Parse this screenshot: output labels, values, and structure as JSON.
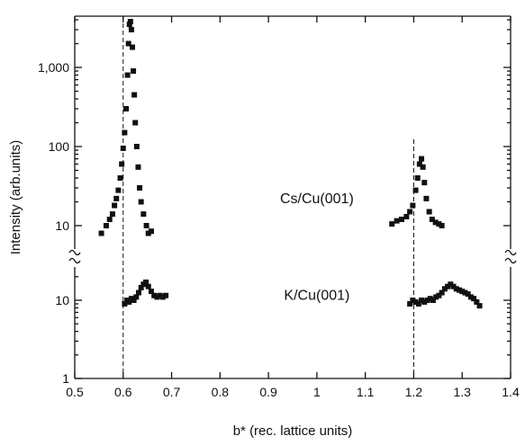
{
  "chart_data": {
    "type": "scatter",
    "xlabel": "b* (rec. lattice units)",
    "ylabel": "Intensity (arb.units)",
    "xlim": [
      0.5,
      1.4
    ],
    "x_ticks": [
      "0.5",
      "0.6",
      "0.7",
      "0.8",
      "0.9",
      "1",
      "1.1",
      "1.2",
      "1.3",
      "1.4"
    ],
    "y_scale": "log, broken axis",
    "y_ticks_upper": [
      "1,000",
      "100",
      "10"
    ],
    "y_ticks_lower": [
      "10",
      "1"
    ],
    "grid": false,
    "reference_lines_x": [
      0.6,
      1.2
    ],
    "series": [
      {
        "name": "Cs/Cu(001)",
        "panel": "upper",
        "points": [
          [
            0.555,
            8
          ],
          [
            0.565,
            10
          ],
          [
            0.572,
            12
          ],
          [
            0.578,
            14
          ],
          [
            0.582,
            18
          ],
          [
            0.586,
            22
          ],
          [
            0.59,
            28
          ],
          [
            0.594,
            40
          ],
          [
            0.597,
            60
          ],
          [
            0.6,
            95
          ],
          [
            0.603,
            150
          ],
          [
            0.606,
            300
          ],
          [
            0.609,
            800
          ],
          [
            0.611,
            2000
          ],
          [
            0.613,
            3500
          ],
          [
            0.615,
            3800
          ],
          [
            0.617,
            3000
          ],
          [
            0.619,
            1800
          ],
          [
            0.621,
            900
          ],
          [
            0.623,
            450
          ],
          [
            0.625,
            200
          ],
          [
            0.628,
            100
          ],
          [
            0.631,
            55
          ],
          [
            0.634,
            30
          ],
          [
            0.637,
            20
          ],
          [
            0.642,
            14
          ],
          [
            0.648,
            10
          ],
          [
            0.652,
            8
          ],
          [
            0.658,
            8.5
          ],
          [
            1.155,
            10.5
          ],
          [
            1.165,
            11.5
          ],
          [
            1.175,
            12
          ],
          [
            1.185,
            13
          ],
          [
            1.192,
            15
          ],
          [
            1.198,
            18
          ],
          [
            1.204,
            28
          ],
          [
            1.208,
            40
          ],
          [
            1.212,
            60
          ],
          [
            1.216,
            70
          ],
          [
            1.219,
            55
          ],
          [
            1.222,
            35
          ],
          [
            1.226,
            22
          ],
          [
            1.232,
            15
          ],
          [
            1.238,
            12
          ],
          [
            1.245,
            11
          ],
          [
            1.252,
            10.5
          ],
          [
            1.258,
            10
          ]
        ]
      },
      {
        "name": "K/Cu(001)",
        "panel": "lower",
        "points": [
          [
            0.603,
            9
          ],
          [
            0.608,
            10
          ],
          [
            0.612,
            9.5
          ],
          [
            0.617,
            10.5
          ],
          [
            0.622,
            10
          ],
          [
            0.627,
            11
          ],
          [
            0.632,
            12.5
          ],
          [
            0.637,
            14.5
          ],
          [
            0.642,
            16
          ],
          [
            0.647,
            17
          ],
          [
            0.652,
            15
          ],
          [
            0.658,
            13
          ],
          [
            0.664,
            11.5
          ],
          [
            0.67,
            11
          ],
          [
            0.676,
            11.5
          ],
          [
            0.682,
            11
          ],
          [
            0.688,
            11.5
          ],
          [
            1.192,
            9
          ],
          [
            1.198,
            10
          ],
          [
            1.204,
            9.5
          ],
          [
            1.21,
            9
          ],
          [
            1.216,
            10
          ],
          [
            1.222,
            9.5
          ],
          [
            1.228,
            10
          ],
          [
            1.234,
            10.5
          ],
          [
            1.24,
            10
          ],
          [
            1.246,
            11
          ],
          [
            1.252,
            11.5
          ],
          [
            1.258,
            12.5
          ],
          [
            1.264,
            14
          ],
          [
            1.27,
            15
          ],
          [
            1.276,
            16
          ],
          [
            1.282,
            15
          ],
          [
            1.288,
            14
          ],
          [
            1.294,
            13.5
          ],
          [
            1.3,
            13
          ],
          [
            1.306,
            12.5
          ],
          [
            1.312,
            12
          ],
          [
            1.318,
            11
          ],
          [
            1.324,
            10.5
          ],
          [
            1.33,
            9.5
          ],
          [
            1.336,
            8.5
          ]
        ]
      }
    ],
    "annotations": [
      {
        "text": "Cs/Cu(001)",
        "x": 1.0,
        "y": 22,
        "panel": "upper"
      },
      {
        "text": "K/Cu(001)",
        "x": 1.0,
        "y": 11.5,
        "panel": "lower"
      }
    ]
  }
}
